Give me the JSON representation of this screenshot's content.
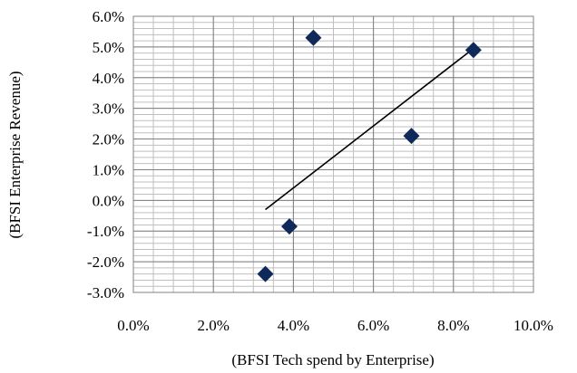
{
  "chart_data": {
    "type": "scatter",
    "title": "",
    "xlabel": "(BFSI Tech spend by Enterprise)",
    "ylabel": "(BFSI Enterprise Revenue)",
    "xlim": [
      0,
      10
    ],
    "ylim": [
      -3,
      6
    ],
    "x_major_step": 2,
    "x_minor_step": 0.5,
    "y_major_step": 1,
    "y_minor_step": 0.2,
    "x_tick_labels": [
      "0.0%",
      "2.0%",
      "4.0%",
      "6.0%",
      "8.0%",
      "10.0%"
    ],
    "y_tick_labels": [
      "-3.0%",
      "-2.0%",
      "-1.0%",
      "0.0%",
      "1.0%",
      "2.0%",
      "3.0%",
      "4.0%",
      "5.0%",
      "6.0%"
    ],
    "grid": true,
    "points": [
      {
        "x": 3.3,
        "y": -2.4
      },
      {
        "x": 3.9,
        "y": -0.85
      },
      {
        "x": 4.5,
        "y": 5.3
      },
      {
        "x": 6.95,
        "y": 2.1
      },
      {
        "x": 8.5,
        "y": 4.9
      }
    ],
    "trendline": {
      "x": [
        3.3,
        8.5
      ],
      "y": [
        -0.3,
        4.95
      ]
    },
    "colors": {
      "marker": "#0f2a5a",
      "trendline": "#000000",
      "grid_major": "#808080",
      "grid_minor": "#bfbfbf"
    }
  }
}
